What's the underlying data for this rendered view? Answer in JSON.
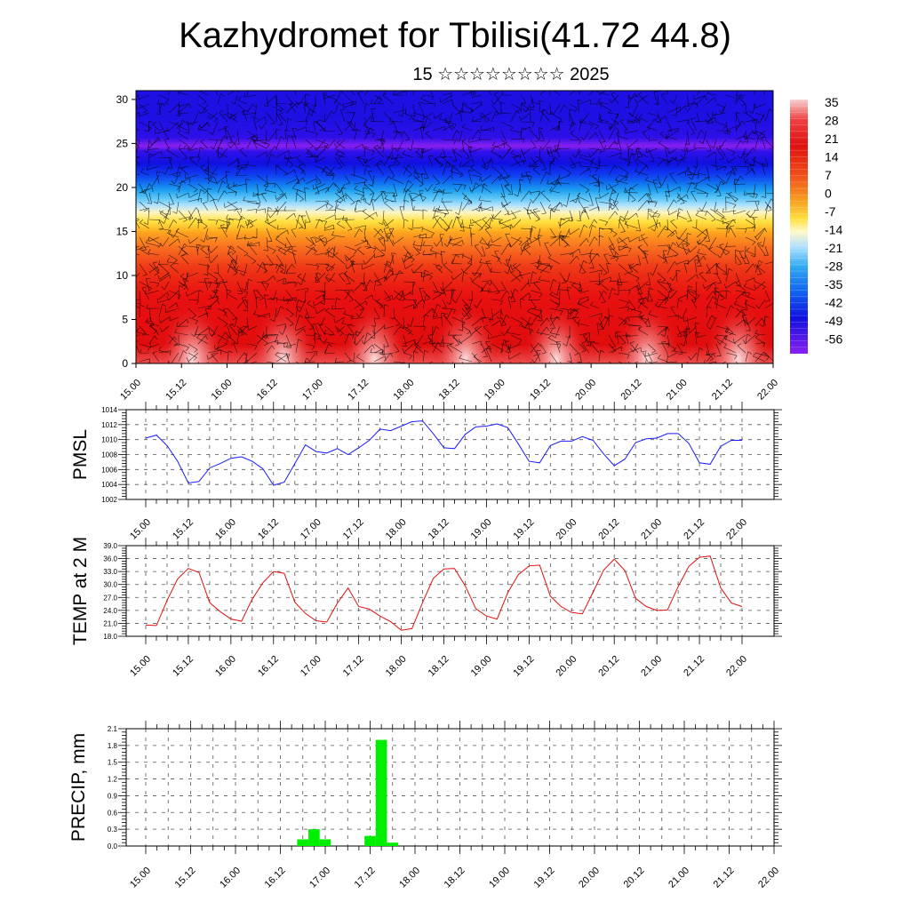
{
  "header": {
    "title": "Kazhydromet for Tbilisi(41.72 44.8)",
    "subtitle": "15 ☆☆☆☆☆☆☆☆ 2025"
  },
  "colors": {
    "pressure_line": "#1a1aff",
    "temperature_line": "#e01010",
    "precip_bar": "#00ee00",
    "grid": "#555555"
  },
  "chart_data": [
    {
      "type": "heatmap",
      "title": "",
      "ylabel": "",
      "x_ticks": [
        "15.00",
        "15.12",
        "16.00",
        "16.12",
        "17.00",
        "17.12",
        "18.00",
        "18.12",
        "19.00",
        "19.12",
        "20.00",
        "20.12",
        "21.00",
        "21.12",
        "22.00"
      ],
      "ylim": [
        0,
        31
      ],
      "y_ticks": [
        "0",
        "5",
        "10",
        "15",
        "20",
        "25",
        "30"
      ],
      "colorbar_labels": [
        "35",
        "28",
        "21",
        "14",
        "7",
        "0",
        "-7",
        "-14",
        "-21",
        "-28",
        "-35",
        "-42",
        "-49",
        "-56"
      ],
      "colorbar_range": [
        -60,
        38
      ],
      "overlay": "wind-barbs",
      "temperature_profile": {
        "heights": [
          0,
          3,
          6,
          9,
          11,
          13,
          15,
          16,
          17,
          18,
          19,
          20,
          21,
          22,
          23,
          24,
          24.8,
          26,
          28,
          31
        ],
        "values": [
          30,
          22,
          18,
          14,
          10,
          4,
          -2,
          -8,
          -12,
          -16,
          -22,
          -30,
          -38,
          -44,
          -50,
          -55,
          -60,
          -55,
          -52,
          -52
        ]
      },
      "warm_cells_x": [
        15.62,
        16.62,
        17.62,
        18.62,
        19.62,
        20.62,
        21.62
      ]
    },
    {
      "type": "line",
      "ylabel": "PMSL",
      "ylim": [
        1002,
        1014
      ],
      "y_ticks": [
        "1014",
        "1012",
        "1010",
        "1008",
        "1006",
        "1004",
        "1002"
      ],
      "x_ticks": [
        "15.00",
        "15.12",
        "16.00",
        "16.12",
        "17.00",
        "17.12",
        "18.00",
        "18.12",
        "19.00",
        "19.12",
        "20.00",
        "20.12",
        "21.00",
        "21.12",
        "22.00"
      ],
      "series": [
        {
          "x": [
            0,
            3,
            6,
            9,
            12,
            15,
            18,
            21,
            24,
            27,
            30,
            33,
            36,
            39,
            42,
            45,
            48,
            51,
            54,
            57,
            60,
            63,
            66,
            69,
            72,
            75,
            78,
            81,
            84,
            87,
            90,
            93,
            96,
            99,
            102,
            105,
            108,
            111,
            114,
            117,
            120,
            123,
            126,
            129,
            132,
            135,
            138,
            141,
            144,
            147,
            150,
            153,
            156,
            159,
            162,
            165,
            168
          ],
          "values": [
            1010.2,
            1010.6,
            1009.2,
            1007.1,
            1004.2,
            1004.4,
            1006.2,
            1006.8,
            1007.5,
            1007.7,
            1007.1,
            1006.1,
            1003.9,
            1004.3,
            1006.8,
            1009.3,
            1008.4,
            1008.2,
            1008.8,
            1008.0,
            1008.9,
            1009.9,
            1011.4,
            1011.2,
            1011.8,
            1012.4,
            1012.5,
            1010.8,
            1008.9,
            1008.8,
            1010.7,
            1011.7,
            1011.8,
            1012.1,
            1011.6,
            1009.4,
            1007.1,
            1006.9,
            1009.2,
            1009.8,
            1009.8,
            1010.4,
            1009.9,
            1008.1,
            1006.5,
            1007.4,
            1009.6,
            1010.1,
            1010.2,
            1010.8,
            1010.8,
            1009.5,
            1006.9,
            1006.7,
            1009.1,
            1009.9,
            1009.9
          ]
        }
      ]
    },
    {
      "type": "line",
      "ylabel": "TEMP at 2 M",
      "ylim": [
        18,
        39
      ],
      "y_ticks": [
        "39.0",
        "36.0",
        "33.0",
        "30.0",
        "27.0",
        "24.0",
        "21.0",
        "18.0"
      ],
      "x_ticks": [
        "15.00",
        "15.12",
        "16.00",
        "16.12",
        "17.00",
        "17.12",
        "18.00",
        "18.12",
        "19.00",
        "19.12",
        "20.00",
        "20.12",
        "21.00",
        "21.12",
        "22.00"
      ],
      "series": [
        {
          "x": [
            0,
            3,
            6,
            9,
            12,
            15,
            18,
            21,
            24,
            27,
            30,
            33,
            36,
            39,
            42,
            45,
            48,
            51,
            54,
            57,
            60,
            63,
            66,
            69,
            72,
            75,
            78,
            81,
            84,
            87,
            90,
            93,
            96,
            99,
            102,
            105,
            108,
            111,
            114,
            117,
            120,
            123,
            126,
            129,
            132,
            135,
            138,
            141,
            144,
            147,
            150,
            153,
            156,
            159,
            162,
            165,
            168
          ],
          "values": [
            20.6,
            20.5,
            26.3,
            31.3,
            33.7,
            32.8,
            25.8,
            23.7,
            22.0,
            21.5,
            26.6,
            30.4,
            33.0,
            32.6,
            25.9,
            23.3,
            21.6,
            21.3,
            25.7,
            29.2,
            24.9,
            24.3,
            22.7,
            21.4,
            19.4,
            19.8,
            25.8,
            31.4,
            33.6,
            33.7,
            29.7,
            24.4,
            22.7,
            22.0,
            28.1,
            32.3,
            34.3,
            34.5,
            27.3,
            24.9,
            23.5,
            23.2,
            28.2,
            33.3,
            35.9,
            33.2,
            26.8,
            24.9,
            24.0,
            24.1,
            29.5,
            34.2,
            36.3,
            36.6,
            29.2,
            25.7,
            24.9
          ]
        }
      ]
    },
    {
      "type": "bar",
      "ylabel": "PRECIP, mm",
      "ylim": [
        0,
        2.1
      ],
      "y_ticks": [
        "2.1",
        "1.8",
        "1.5",
        "1.2",
        "0.9",
        "0.6",
        "0.3",
        "0.0"
      ],
      "x_ticks": [
        "15.00",
        "15.12",
        "16.00",
        "16.12",
        "17.00",
        "17.12",
        "18.00",
        "18.12",
        "19.00",
        "19.12",
        "20.00",
        "20.12",
        "21.00",
        "21.12",
        "22.00"
      ],
      "series": [
        {
          "x": [
            42,
            45,
            48,
            60,
            63,
            66
          ],
          "values": [
            0.12,
            0.3,
            0.12,
            0.18,
            1.9,
            0.06
          ]
        }
      ]
    }
  ]
}
